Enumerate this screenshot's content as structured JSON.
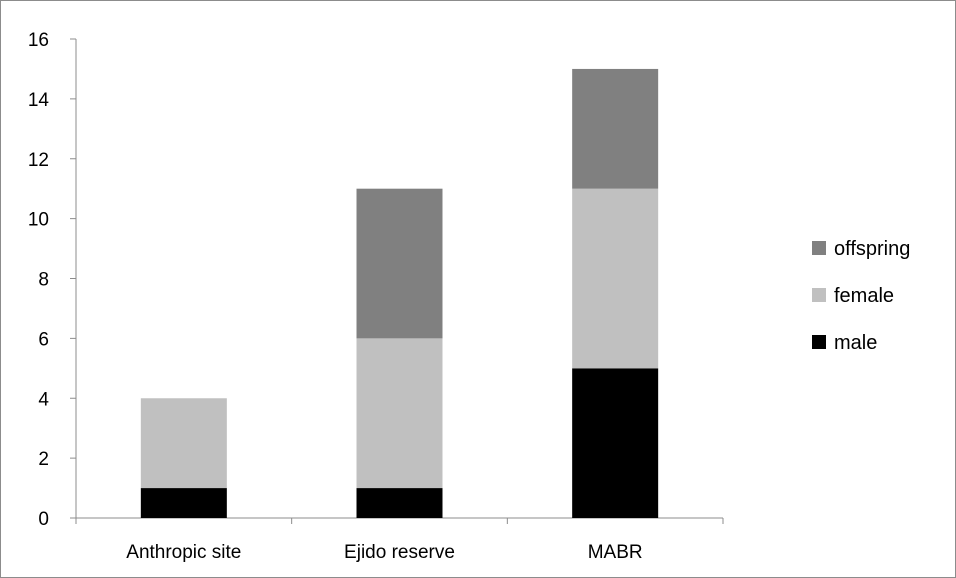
{
  "chart_data": {
    "type": "bar",
    "stacked": true,
    "categories": [
      "Anthropic site",
      "Ejido reserve",
      "MABR"
    ],
    "series": [
      {
        "name": "male",
        "values": [
          1,
          1,
          5
        ],
        "color": "#000000"
      },
      {
        "name": "female",
        "values": [
          3,
          5,
          6
        ],
        "color": "#c0c0c0"
      },
      {
        "name": "offspring",
        "values": [
          0,
          5,
          4
        ],
        "color": "#808080"
      }
    ],
    "ylim": [
      0,
      16
    ],
    "yticks": [
      0,
      2,
      4,
      6,
      8,
      10,
      12,
      14,
      16
    ],
    "grid": false,
    "legend_position": "right",
    "legend_order": [
      "offspring",
      "female",
      "male"
    ]
  }
}
